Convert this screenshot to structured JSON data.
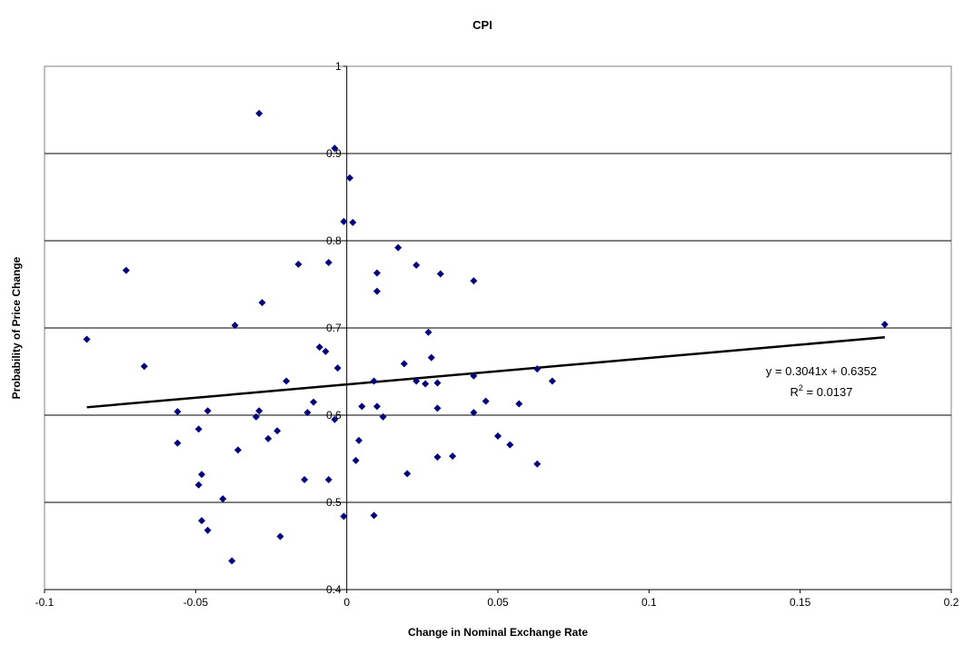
{
  "chart_data": {
    "type": "scatter",
    "title": "CPI",
    "xlabel": "Change in Nominal Exchange Rate",
    "ylabel": "Probability of Price Change",
    "xlim": [
      -0.1,
      0.2
    ],
    "ylim": [
      0.4,
      1.0
    ],
    "x_ticks": [
      "-0.1",
      "-0.05",
      "0",
      "0.05",
      "0.1",
      "0.15",
      "0.2"
    ],
    "y_ticks": [
      "0.4",
      "0.5",
      "0.6",
      "0.7",
      "0.8",
      "0.9",
      "1"
    ],
    "grid": "horizontal",
    "point_color": "#00007f",
    "trendline": {
      "slope": 0.3041,
      "intercept": 0.6352,
      "x_range": [
        -0.086,
        0.178
      ],
      "equation": "y = 0.3041x + 0.6352",
      "r2_prefix": "R",
      "r2_sup": "2",
      "r2_suffix": " = 0.0137"
    },
    "series": [
      {
        "points": [
          [
            -0.086,
            0.687
          ],
          [
            -0.073,
            0.766
          ],
          [
            -0.067,
            0.656
          ],
          [
            -0.056,
            0.604
          ],
          [
            -0.056,
            0.568
          ],
          [
            -0.049,
            0.584
          ],
          [
            -0.048,
            0.532
          ],
          [
            -0.049,
            0.52
          ],
          [
            -0.048,
            0.479
          ],
          [
            -0.046,
            0.468
          ],
          [
            -0.046,
            0.605
          ],
          [
            -0.041,
            0.504
          ],
          [
            -0.037,
            0.703
          ],
          [
            -0.036,
            0.56
          ],
          [
            -0.038,
            0.433
          ],
          [
            -0.029,
            0.946
          ],
          [
            -0.028,
            0.729
          ],
          [
            -0.029,
            0.605
          ],
          [
            -0.03,
            0.598
          ],
          [
            -0.026,
            0.573
          ],
          [
            -0.023,
            0.582
          ],
          [
            -0.022,
            0.461
          ],
          [
            -0.02,
            0.639
          ],
          [
            -0.016,
            0.773
          ],
          [
            -0.014,
            0.526
          ],
          [
            -0.013,
            0.603
          ],
          [
            -0.011,
            0.615
          ],
          [
            -0.009,
            0.678
          ],
          [
            -0.007,
            0.673
          ],
          [
            -0.006,
            0.775
          ],
          [
            -0.006,
            0.526
          ],
          [
            -0.004,
            0.906
          ],
          [
            -0.004,
            0.595
          ],
          [
            -0.003,
            0.654
          ],
          [
            -0.001,
            0.822
          ],
          [
            0.001,
            0.872
          ],
          [
            0.002,
            0.821
          ],
          [
            -0.001,
            0.484
          ],
          [
            0.003,
            0.548
          ],
          [
            0.004,
            0.571
          ],
          [
            0.005,
            0.61
          ],
          [
            0.009,
            0.639
          ],
          [
            0.01,
            0.763
          ],
          [
            0.01,
            0.742
          ],
          [
            0.01,
            0.61
          ],
          [
            0.009,
            0.485
          ],
          [
            0.012,
            0.598
          ],
          [
            0.017,
            0.792
          ],
          [
            0.019,
            0.659
          ],
          [
            0.02,
            0.533
          ],
          [
            0.023,
            0.772
          ],
          [
            0.023,
            0.639
          ],
          [
            0.026,
            0.636
          ],
          [
            0.027,
            0.695
          ],
          [
            0.028,
            0.666
          ],
          [
            0.03,
            0.552
          ],
          [
            0.031,
            0.762
          ],
          [
            0.03,
            0.637
          ],
          [
            0.03,
            0.608
          ],
          [
            0.035,
            0.553
          ],
          [
            0.042,
            0.754
          ],
          [
            0.042,
            0.645
          ],
          [
            0.042,
            0.603
          ],
          [
            0.046,
            0.616
          ],
          [
            0.05,
            0.576
          ],
          [
            0.054,
            0.566
          ],
          [
            0.057,
            0.613
          ],
          [
            0.063,
            0.653
          ],
          [
            0.063,
            0.544
          ],
          [
            0.068,
            0.639
          ],
          [
            0.178,
            0.704
          ]
        ]
      }
    ]
  }
}
